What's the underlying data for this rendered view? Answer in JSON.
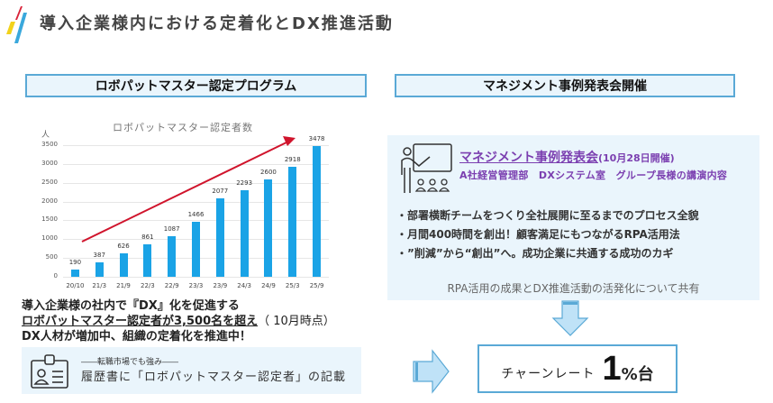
{
  "header": {
    "title": "導入企業様内における定着化とDX推進活動",
    "logo_colors": [
      "#f2d21b",
      "#d9243a",
      "#3aa8dc"
    ]
  },
  "left": {
    "section_title": "ロボパットマスター認定プログラム",
    "summary": {
      "line1": "導入企業様の社内で『DX』化を促進する",
      "line2_underlined": "ロボパットマスター認定者が3,500名を超え",
      "line2_suffix": "（ 10月時点）",
      "line3": " DX人材が増加中、組織の定着化を推進中！"
    },
    "resume": {
      "icon": "id-badge-icon",
      "subtitle": "――転職市場でも強み――",
      "text": "履歴書に「ロボパットマスター認定者」の記載"
    }
  },
  "chart_data": {
    "type": "bar",
    "title": "ロボパットマスター認定者数",
    "xlabel": "",
    "ylabel": "人",
    "categories": [
      "20/10",
      "21/3",
      "21/9",
      "22/3",
      "22/9",
      "23/3",
      "23/9",
      "24/3",
      "24/9",
      "25/3",
      "25/9"
    ],
    "values": [
      190,
      387,
      626,
      861,
      1087,
      1466,
      2077,
      2293,
      2600,
      2918,
      3478
    ],
    "ylim": [
      0,
      3500
    ],
    "yticks": [
      0,
      500,
      1000,
      1500,
      2000,
      2500,
      3000,
      3500
    ],
    "grid": true,
    "bar_color": "#1aa3e6",
    "annotation": "red upward trend arrow"
  },
  "right": {
    "section_title": "マネジメント事例発表会開催",
    "event": {
      "icon": "presentation-icon",
      "title": "マネジメント事例発表会",
      "date": "(10月28日開催)",
      "subtitle": "A社経営管理部　DXシステム室　グループ長様の講演内容",
      "bullets": [
        "・部署横断チームをつくり全社展開に至るまでのプロセス全貌",
        "・月間400時間を創出！顧客満足にもつながるRPA活用法",
        "・”削減”から“創出”へ。成功企業に共通する成功のカギ"
      ],
      "share_text": "RPA活用の成果とDX推進活動の活発化について共有"
    },
    "result": {
      "label": "チャーンレート",
      "value": "1",
      "unit": "%台"
    }
  },
  "colors": {
    "accent_border": "#5aa9d6",
    "panel_bg": "#eaf5fc",
    "purple": "#7b3fb0",
    "bar": "#1aa3e6",
    "trend": "#d0142c"
  }
}
